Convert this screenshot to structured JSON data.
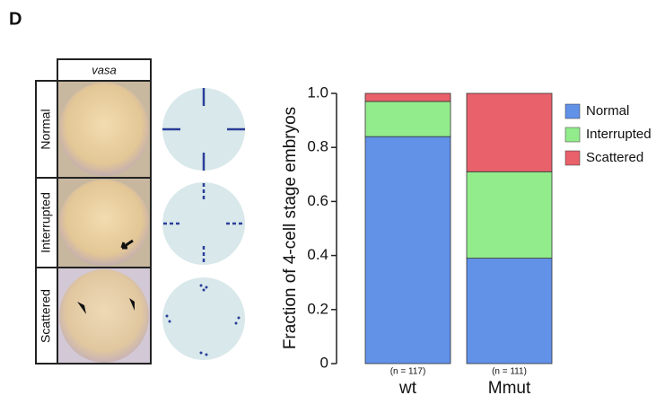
{
  "panel_label": "D",
  "figure": {
    "column_header": "vasa",
    "row_labels": [
      "Normal",
      "Interrupted",
      "Scattered"
    ]
  },
  "chart_data": {
    "type": "stacked_bar",
    "y_label": "Fraction of 4-cell stage embryos",
    "categories": [
      "wt",
      "Mmut"
    ],
    "category_notes": [
      "(n = 117)",
      "(n = 111)"
    ],
    "series": [
      {
        "name": "Normal",
        "color": "#6291e8",
        "values": [
          0.84,
          0.39
        ]
      },
      {
        "name": "Interrupted",
        "color": "#93ec8c",
        "values": [
          0.13,
          0.32
        ]
      },
      {
        "name": "Scattered",
        "color": "#e8616b",
        "values": [
          0.03,
          0.29
        ]
      }
    ],
    "ylim": [
      0,
      1
    ],
    "yticks": [
      0,
      0.2,
      0.4,
      0.6,
      0.8,
      {
        "value": 1,
        "label": "1.0"
      }
    ],
    "legend": "top-right"
  }
}
